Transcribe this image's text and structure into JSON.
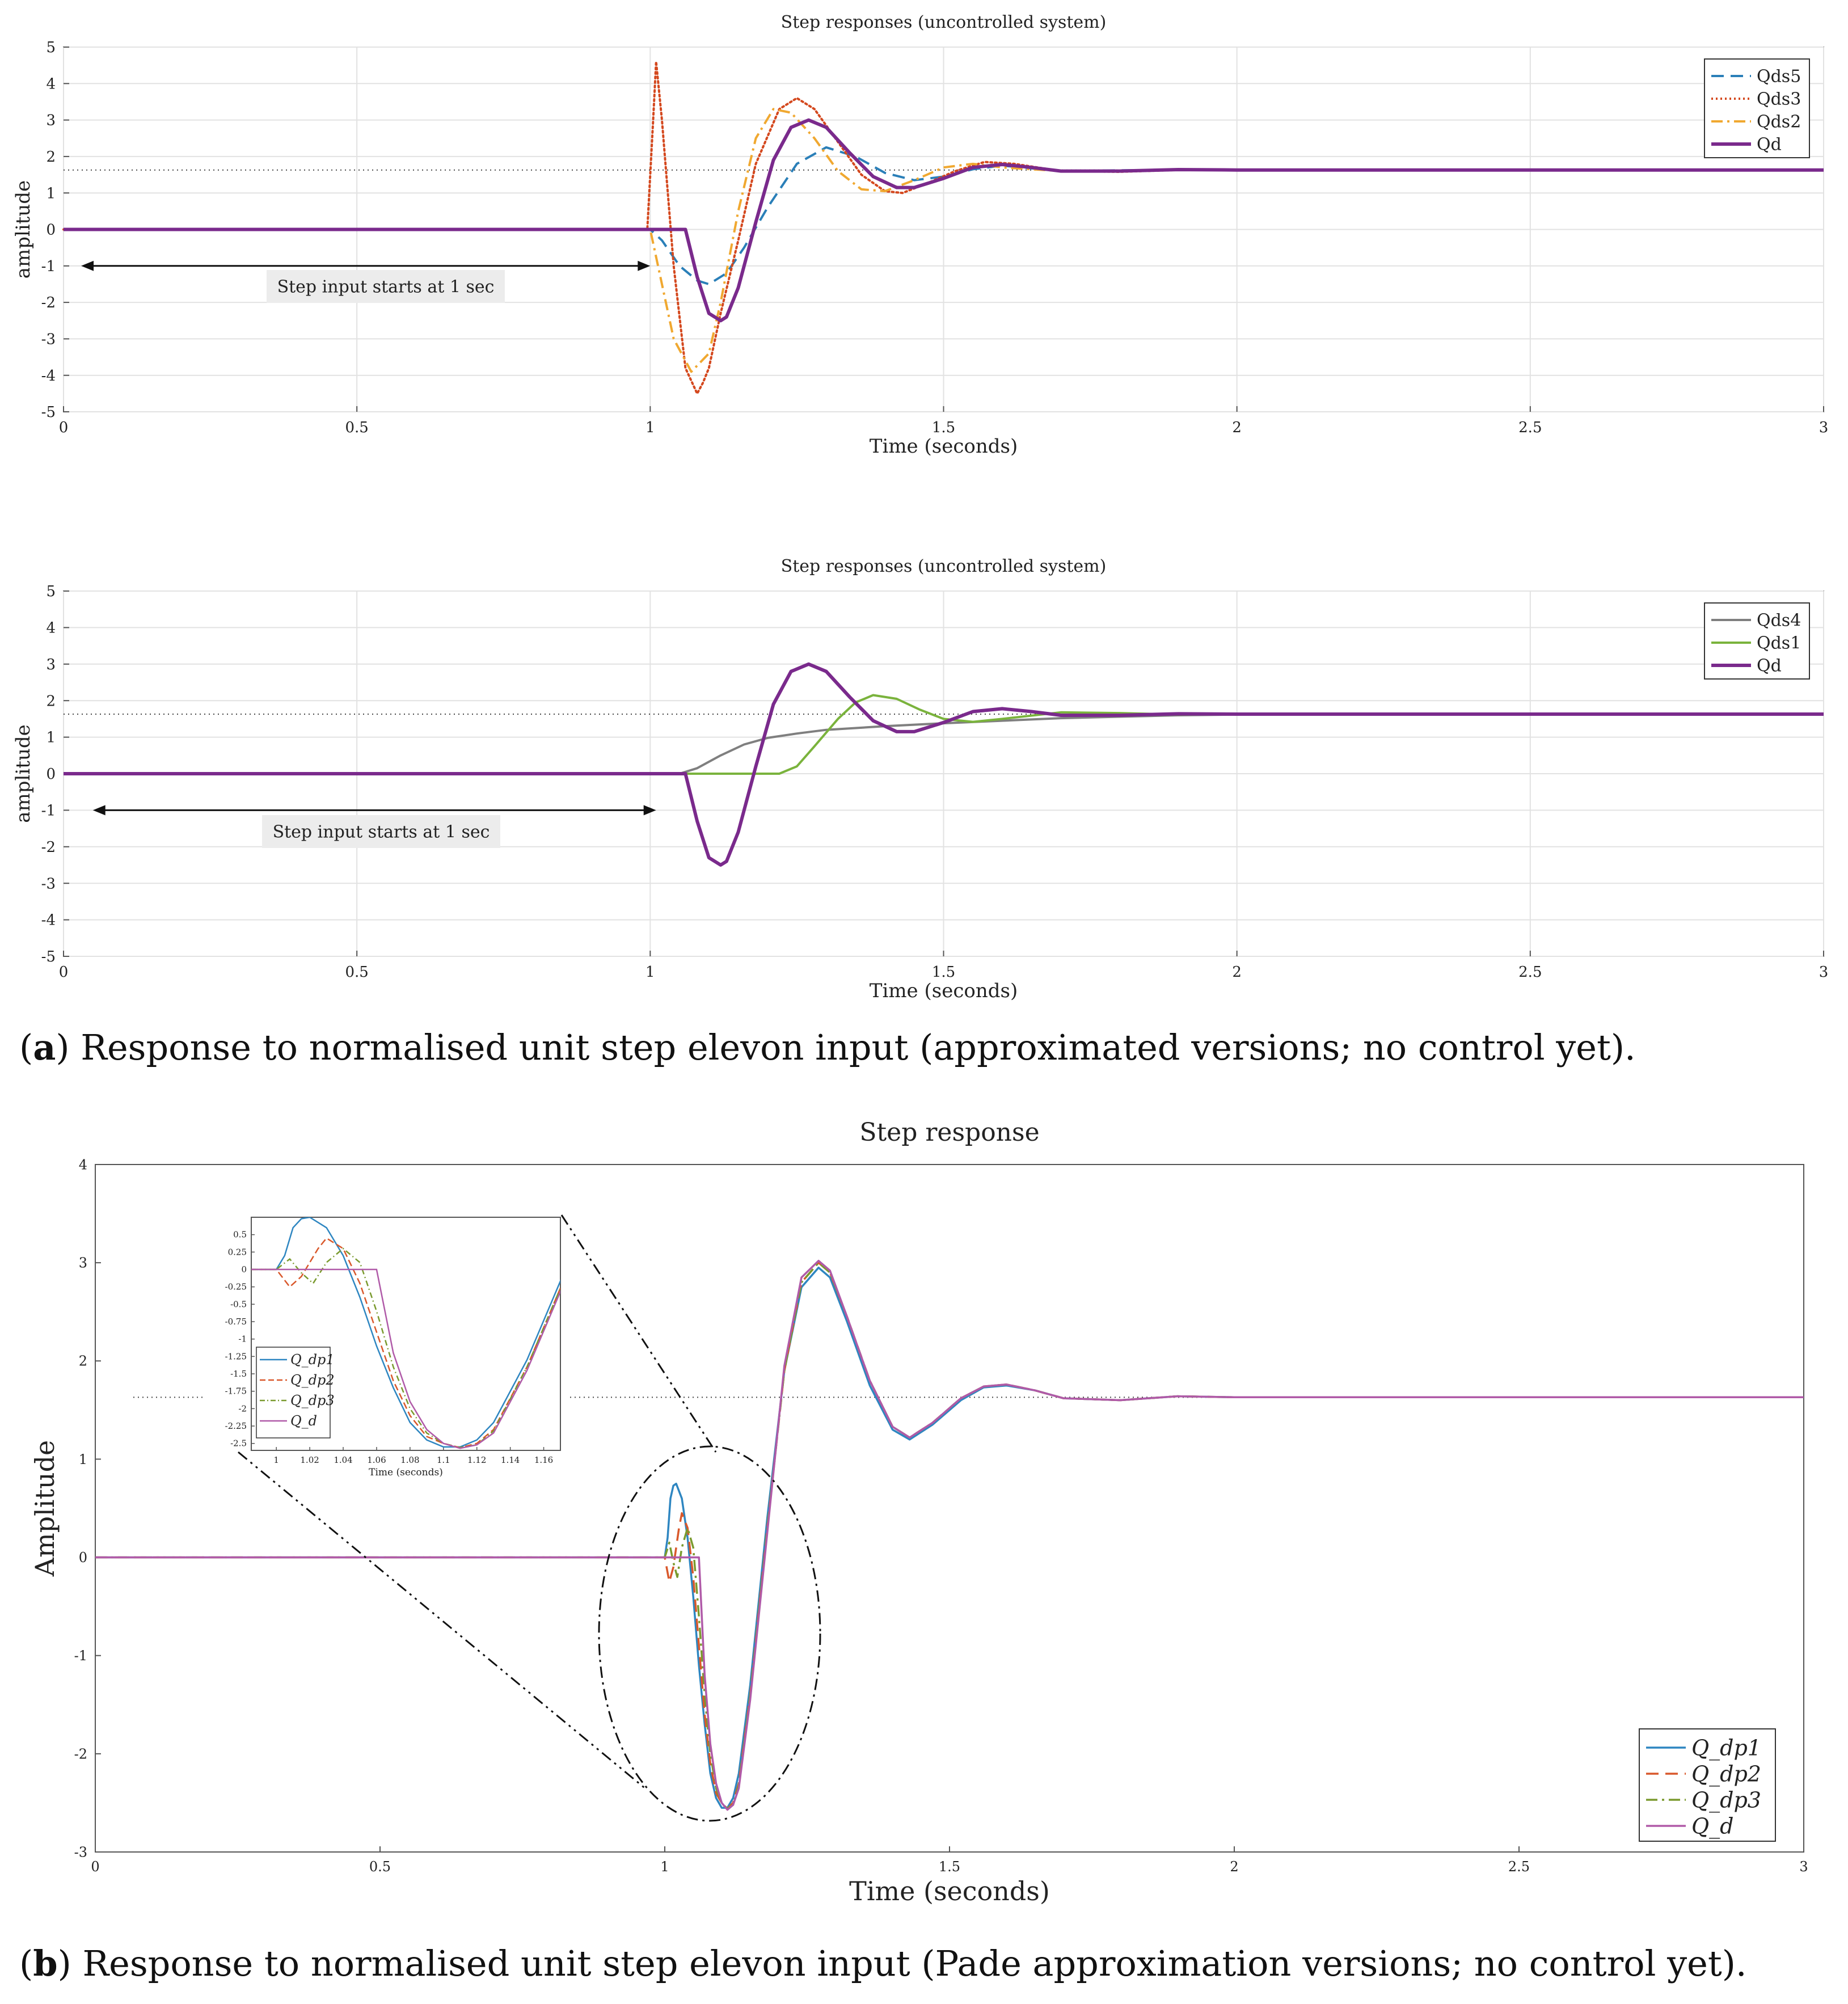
{
  "figure": {
    "caption_a_letter": "a",
    "caption_a_text": "Response to normalised unit step elevon input (approximated versions; no control yet).",
    "caption_b_letter": "b",
    "caption_b_text": "Response to normalised unit step elevon input (Pade approximation versions; no control yet)."
  },
  "chart_data": [
    {
      "id": "panel_a_top",
      "type": "line",
      "title": "Step responses (uncontrolled system)",
      "xlabel": "Time (seconds)",
      "ylabel": "amplitude",
      "xlim": [
        0,
        3
      ],
      "ylim": [
        -5,
        5
      ],
      "xticks": [
        0,
        0.5,
        1,
        1.5,
        2,
        2.5,
        3
      ],
      "yticks": [
        -5,
        -4,
        -3,
        -2,
        -1,
        0,
        1,
        2,
        3,
        4,
        5
      ],
      "grid": true,
      "legend_position": "top-right",
      "reference_level": 1.63,
      "annotation": {
        "text": "Step input starts at 1 sec",
        "x_from": 0.03,
        "x_to": 1.0,
        "y": -1.0
      },
      "series": [
        {
          "name": "Qds5",
          "style": "dashed",
          "color": "#2a7fb8",
          "x": [
            0,
            1.0,
            1.02,
            1.05,
            1.08,
            1.1,
            1.13,
            1.16,
            1.2,
            1.25,
            1.3,
            1.35,
            1.4,
            1.45,
            1.5,
            1.55,
            1.6,
            1.7,
            1.8,
            1.9,
            2.0,
            3.0
          ],
          "y": [
            0,
            0,
            -0.3,
            -1.0,
            -1.4,
            -1.5,
            -1.2,
            -0.5,
            0.6,
            1.8,
            2.25,
            2.0,
            1.55,
            1.35,
            1.45,
            1.65,
            1.75,
            1.6,
            1.62,
            1.63,
            1.63,
            1.63
          ]
        },
        {
          "name": "Qds3",
          "style": "dotted",
          "color": "#d4481e",
          "x": [
            0,
            0.995,
            1.005,
            1.01,
            1.02,
            1.04,
            1.06,
            1.08,
            1.09,
            1.1,
            1.12,
            1.15,
            1.18,
            1.22,
            1.25,
            1.28,
            1.32,
            1.36,
            1.4,
            1.43,
            1.47,
            1.52,
            1.57,
            1.62,
            1.7,
            1.8,
            1.9,
            2.0,
            3.0
          ],
          "y": [
            0,
            0,
            3.0,
            4.6,
            3.0,
            -1.0,
            -3.8,
            -4.5,
            -4.2,
            -3.8,
            -2.3,
            -0.3,
            1.8,
            3.3,
            3.6,
            3.3,
            2.4,
            1.5,
            1.05,
            1.0,
            1.25,
            1.6,
            1.85,
            1.8,
            1.6,
            1.58,
            1.63,
            1.63,
            1.63
          ]
        },
        {
          "name": "Qds2",
          "style": "dashdot",
          "color": "#f0a830",
          "x": [
            0,
            1.0,
            1.02,
            1.04,
            1.07,
            1.1,
            1.12,
            1.15,
            1.18,
            1.21,
            1.24,
            1.28,
            1.32,
            1.36,
            1.4,
            1.45,
            1.5,
            1.55,
            1.6,
            1.7,
            1.8,
            1.9,
            2.0,
            3.0
          ],
          "y": [
            0,
            0,
            -1.5,
            -3.0,
            -3.9,
            -3.4,
            -2.0,
            0.5,
            2.5,
            3.3,
            3.2,
            2.5,
            1.6,
            1.1,
            1.05,
            1.35,
            1.7,
            1.8,
            1.7,
            1.6,
            1.6,
            1.63,
            1.63,
            1.63
          ]
        },
        {
          "name": "Qd",
          "style": "solid",
          "color": "#7a2a8c",
          "x": [
            0,
            1.06,
            1.08,
            1.1,
            1.12,
            1.13,
            1.15,
            1.18,
            1.21,
            1.24,
            1.27,
            1.3,
            1.34,
            1.38,
            1.42,
            1.45,
            1.5,
            1.55,
            1.6,
            1.65,
            1.7,
            1.8,
            1.9,
            2.0,
            3.0
          ],
          "y": [
            0,
            0,
            -1.3,
            -2.3,
            -2.5,
            -2.4,
            -1.6,
            0.2,
            1.9,
            2.8,
            3.0,
            2.8,
            2.1,
            1.45,
            1.15,
            1.15,
            1.4,
            1.7,
            1.78,
            1.7,
            1.6,
            1.6,
            1.64,
            1.63,
            1.63
          ]
        }
      ]
    },
    {
      "id": "panel_a_bottom",
      "type": "line",
      "title": "Step responses (uncontrolled system)",
      "xlabel": "Time (seconds)",
      "ylabel": "amplitude",
      "xlim": [
        0,
        3
      ],
      "ylim": [
        -5,
        5
      ],
      "xticks": [
        0,
        0.5,
        1,
        1.5,
        2,
        2.5,
        3
      ],
      "yticks": [
        -5,
        -4,
        -3,
        -2,
        -1,
        0,
        1,
        2,
        3,
        4,
        5
      ],
      "grid": true,
      "legend_position": "top-right",
      "reference_level": 1.63,
      "annotation": {
        "text": "Step input starts at 1 sec",
        "x_from": 0.05,
        "x_to": 1.01,
        "y": -1.0
      },
      "series": [
        {
          "name": "Qds4",
          "style": "solid",
          "color": "#7f7f7f",
          "x": [
            0,
            1.05,
            1.08,
            1.12,
            1.16,
            1.2,
            1.25,
            1.3,
            1.4,
            1.5,
            1.6,
            1.7,
            1.8,
            1.9,
            2.0,
            3.0
          ],
          "y": [
            0,
            0,
            0.15,
            0.5,
            0.8,
            0.98,
            1.1,
            1.2,
            1.3,
            1.38,
            1.45,
            1.52,
            1.56,
            1.6,
            1.62,
            1.63
          ]
        },
        {
          "name": "Qds1",
          "style": "solid",
          "color": "#7ab33c",
          "x": [
            0,
            1.22,
            1.25,
            1.28,
            1.32,
            1.35,
            1.38,
            1.42,
            1.46,
            1.5,
            1.55,
            1.6,
            1.7,
            1.8,
            1.9,
            2.0,
            3.0
          ],
          "y": [
            0,
            0,
            0.2,
            0.75,
            1.5,
            1.95,
            2.15,
            2.05,
            1.75,
            1.5,
            1.42,
            1.5,
            1.68,
            1.66,
            1.62,
            1.63,
            1.63
          ]
        },
        {
          "name": "Qd",
          "style": "solid",
          "color": "#7a2a8c",
          "x": [
            0,
            1.06,
            1.08,
            1.1,
            1.12,
            1.13,
            1.15,
            1.18,
            1.21,
            1.24,
            1.27,
            1.3,
            1.34,
            1.38,
            1.42,
            1.45,
            1.5,
            1.55,
            1.6,
            1.65,
            1.7,
            1.8,
            1.9,
            2.0,
            3.0
          ],
          "y": [
            0,
            0,
            -1.3,
            -2.3,
            -2.5,
            -2.4,
            -1.6,
            0.2,
            1.9,
            2.8,
            3.0,
            2.8,
            2.1,
            1.45,
            1.15,
            1.15,
            1.4,
            1.7,
            1.78,
            1.7,
            1.6,
            1.6,
            1.64,
            1.63,
            1.63
          ]
        }
      ]
    },
    {
      "id": "panel_b",
      "type": "line",
      "title": "Step response",
      "xlabel": "Time (seconds)",
      "ylabel": "Amplitude",
      "xlim": [
        0,
        3
      ],
      "ylim": [
        -3,
        4
      ],
      "xticks": [
        0,
        0.5,
        1,
        1.5,
        2,
        2.5,
        3
      ],
      "yticks": [
        -3,
        -2,
        -1,
        0,
        1,
        2,
        3,
        4
      ],
      "grid": false,
      "legend_position": "bottom-right",
      "reference_level": 1.63,
      "series": [
        {
          "name": "Q_dp1",
          "style": "solid",
          "color": "#2e86c1",
          "x": [
            0,
            1.0,
            1.005,
            1.01,
            1.015,
            1.02,
            1.03,
            1.04,
            1.05,
            1.06,
            1.07,
            1.08,
            1.09,
            1.1,
            1.11,
            1.12,
            1.13,
            1.15,
            1.18,
            1.21,
            1.24,
            1.27,
            1.29,
            1.32,
            1.36,
            1.4,
            1.43,
            1.47,
            1.52,
            1.56,
            1.6,
            1.65,
            1.7,
            1.8,
            1.9,
            2.0,
            3.0
          ],
          "y": [
            0,
            0,
            0.2,
            0.6,
            0.73,
            0.75,
            0.6,
            0.2,
            -0.4,
            -1.1,
            -1.7,
            -2.2,
            -2.45,
            -2.55,
            -2.55,
            -2.45,
            -2.2,
            -1.3,
            0.4,
            1.9,
            2.75,
            2.95,
            2.85,
            2.4,
            1.75,
            1.3,
            1.2,
            1.35,
            1.6,
            1.73,
            1.75,
            1.7,
            1.62,
            1.6,
            1.64,
            1.63,
            1.63
          ]
        },
        {
          "name": "Q_dp2",
          "style": "dashed",
          "color": "#d9582b",
          "x": [
            0,
            1.0,
            1.008,
            1.015,
            1.025,
            1.03,
            1.04,
            1.05,
            1.06,
            1.07,
            1.08,
            1.09,
            1.1,
            1.11,
            1.12,
            1.13,
            1.15,
            1.18,
            1.21,
            1.24,
            1.27,
            1.29,
            1.32,
            1.36,
            1.4,
            1.43,
            1.47,
            1.52,
            1.56,
            1.6,
            1.65,
            1.7,
            1.8,
            1.9,
            2.0,
            3.0
          ],
          "y": [
            0,
            0,
            -0.25,
            -0.1,
            0.3,
            0.45,
            0.3,
            -0.2,
            -0.9,
            -1.6,
            -2.1,
            -2.4,
            -2.5,
            -2.56,
            -2.5,
            -2.3,
            -1.4,
            0.3,
            1.9,
            2.8,
            3.0,
            2.9,
            2.45,
            1.8,
            1.33,
            1.22,
            1.37,
            1.62,
            1.74,
            1.76,
            1.7,
            1.62,
            1.6,
            1.64,
            1.63,
            1.63
          ]
        },
        {
          "name": "Q_dp3",
          "style": "dashdot",
          "color": "#7a9a2e",
          "x": [
            0,
            1.0,
            1.008,
            1.015,
            1.022,
            1.03,
            1.04,
            1.05,
            1.06,
            1.07,
            1.08,
            1.09,
            1.1,
            1.11,
            1.12,
            1.13,
            1.15,
            1.18,
            1.21,
            1.24,
            1.27,
            1.29,
            1.32,
            1.36,
            1.4,
            1.43,
            1.47,
            1.52,
            1.56,
            1.6,
            1.65,
            1.7,
            1.8,
            1.9,
            2.0,
            3.0
          ],
          "y": [
            0,
            0,
            0.15,
            -0.05,
            -0.2,
            0.1,
            0.3,
            0.1,
            -0.6,
            -1.4,
            -2.0,
            -2.35,
            -2.5,
            -2.56,
            -2.52,
            -2.32,
            -1.4,
            0.3,
            1.9,
            2.8,
            3.0,
            2.9,
            2.45,
            1.8,
            1.33,
            1.22,
            1.37,
            1.62,
            1.74,
            1.76,
            1.7,
            1.62,
            1.6,
            1.64,
            1.63,
            1.63
          ]
        },
        {
          "name": "Q_d",
          "style": "solid",
          "color": "#b05aa8",
          "x": [
            0,
            1.06,
            1.07,
            1.08,
            1.09,
            1.1,
            1.11,
            1.12,
            1.13,
            1.15,
            1.18,
            1.21,
            1.24,
            1.27,
            1.29,
            1.32,
            1.36,
            1.4,
            1.43,
            1.47,
            1.52,
            1.56,
            1.6,
            1.65,
            1.7,
            1.8,
            1.9,
            2.0,
            3.0
          ],
          "y": [
            0,
            0,
            -1.2,
            -1.9,
            -2.3,
            -2.5,
            -2.57,
            -2.52,
            -2.35,
            -1.45,
            0.25,
            1.95,
            2.85,
            3.02,
            2.92,
            2.45,
            1.8,
            1.33,
            1.22,
            1.37,
            1.62,
            1.74,
            1.76,
            1.7,
            1.62,
            1.6,
            1.64,
            1.63,
            1.63
          ]
        }
      ],
      "inset": {
        "xlabel": "Time (seconds)",
        "xlim": [
          0.985,
          1.17
        ],
        "ylim": [
          -2.6,
          0.75
        ],
        "xticks": [
          1,
          1.02,
          1.04,
          1.06,
          1.08,
          1.1,
          1.12,
          1.14,
          1.16
        ],
        "yticks": [
          0.5,
          0.25,
          0,
          -0.25,
          -0.5,
          -0.75,
          -1,
          -1.25,
          -1.5,
          -1.75,
          -2,
          -2.25,
          -2.5
        ],
        "xtick_labels": [
          "1",
          "1.02",
          "1.04",
          "1.06",
          "1.08",
          "1.1",
          "1.12",
          "1.14",
          "1.16"
        ],
        "ytick_labels": [
          "0.5",
          "0.25",
          "0",
          "-0.25",
          "-0.5",
          "-0.75",
          "-1",
          "-1.25",
          "-1.5",
          "-1.75",
          "-2",
          "-2.25",
          "-2.5"
        ],
        "legend_position": "bottom-left"
      }
    }
  ]
}
